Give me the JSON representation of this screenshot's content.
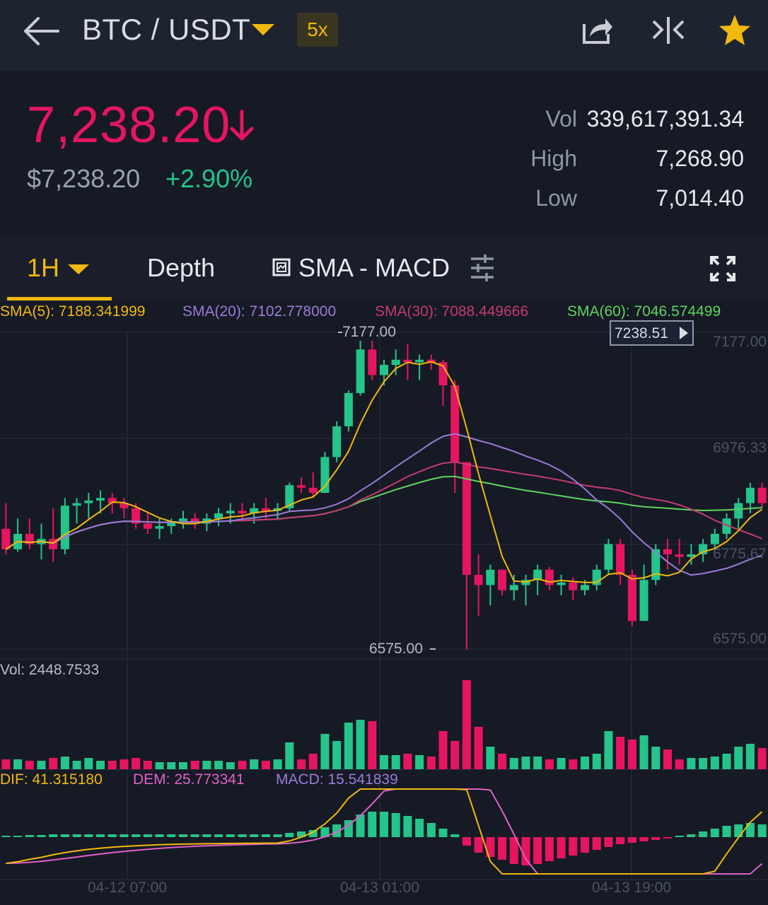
{
  "header": {
    "pair": "BTC / USDT",
    "leverage": "5x"
  },
  "icons": {
    "back": "back-arrow-icon",
    "share": "share-icon",
    "compare": "compare-icon",
    "favorite": "star-icon"
  },
  "ticker": {
    "last_price": "7,238.20",
    "usd_price": "$7,238.20",
    "change": "+2.90%",
    "vol_label": "Vol",
    "vol_value": "339,617,391.34",
    "high_label": "High",
    "high_value": "7,268.90",
    "low_label": "Low",
    "low_value": "7,014.40"
  },
  "tabs": {
    "interval": "1H",
    "depth": "Depth",
    "indicators": "SMA - MACD"
  },
  "colors": {
    "up": "#25c48a",
    "down": "#e6155f",
    "accent": "#f0b90b",
    "sma5": "#f0b90b",
    "sma20": "#9b7ad8",
    "sma30": "#c43a70",
    "sma60": "#5fd35f",
    "dif": "#f0b90b",
    "dem": "#e060c8"
  },
  "chart_data": {
    "type": "candlestick",
    "sma_legend": [
      "SMA(5): 7188.341999",
      "SMA(20): 7102.778000",
      "SMA(30): 7088.449666",
      "SMA(60): 7046.574499"
    ],
    "y_ticks": [
      "7177.00",
      "6976.33",
      "6775.67",
      "6575.00"
    ],
    "ylim": [
      6575,
      7177
    ],
    "max_label": "7177.00",
    "min_label": "6575.00",
    "current_price_tag": "7238.51",
    "x_ticks": [
      "04-12 07:00",
      "04-13 01:00",
      "04-13 19:00"
    ],
    "volume_label": "Vol: 2448.7533",
    "macd_legend": [
      "DIF: 41.315180",
      "DEM: 25.773341",
      "MACD: 15.541839"
    ],
    "candles": [
      {
        "o": 6810,
        "h": 6860,
        "l": 6760,
        "c": 6770
      },
      {
        "o": 6770,
        "h": 6830,
        "l": 6765,
        "c": 6800
      },
      {
        "o": 6800,
        "h": 6830,
        "l": 6770,
        "c": 6780
      },
      {
        "o": 6780,
        "h": 6820,
        "l": 6750,
        "c": 6790
      },
      {
        "o": 6790,
        "h": 6850,
        "l": 6745,
        "c": 6770
      },
      {
        "o": 6770,
        "h": 6870,
        "l": 6760,
        "c": 6855
      },
      {
        "o": 6855,
        "h": 6870,
        "l": 6820,
        "c": 6860
      },
      {
        "o": 6860,
        "h": 6880,
        "l": 6830,
        "c": 6865
      },
      {
        "o": 6865,
        "h": 6885,
        "l": 6840,
        "c": 6870
      },
      {
        "o": 6870,
        "h": 6880,
        "l": 6840,
        "c": 6860
      },
      {
        "o": 6860,
        "h": 6870,
        "l": 6830,
        "c": 6850
      },
      {
        "o": 6850,
        "h": 6860,
        "l": 6810,
        "c": 6820
      },
      {
        "o": 6820,
        "h": 6840,
        "l": 6800,
        "c": 6810
      },
      {
        "o": 6810,
        "h": 6830,
        "l": 6790,
        "c": 6815
      },
      {
        "o": 6815,
        "h": 6830,
        "l": 6800,
        "c": 6825
      },
      {
        "o": 6825,
        "h": 6845,
        "l": 6810,
        "c": 6830
      },
      {
        "o": 6830,
        "h": 6840,
        "l": 6810,
        "c": 6820
      },
      {
        "o": 6820,
        "h": 6840,
        "l": 6805,
        "c": 6830
      },
      {
        "o": 6830,
        "h": 6850,
        "l": 6815,
        "c": 6840
      },
      {
        "o": 6840,
        "h": 6860,
        "l": 6820,
        "c": 6845
      },
      {
        "o": 6845,
        "h": 6860,
        "l": 6825,
        "c": 6840
      },
      {
        "o": 6840,
        "h": 6860,
        "l": 6820,
        "c": 6850
      },
      {
        "o": 6850,
        "h": 6870,
        "l": 6830,
        "c": 6845
      },
      {
        "o": 6845,
        "h": 6860,
        "l": 6830,
        "c": 6850
      },
      {
        "o": 6850,
        "h": 6900,
        "l": 6845,
        "c": 6895
      },
      {
        "o": 6895,
        "h": 6910,
        "l": 6880,
        "c": 6890
      },
      {
        "o": 6890,
        "h": 6920,
        "l": 6870,
        "c": 6880
      },
      {
        "o": 6880,
        "h": 6960,
        "l": 6880,
        "c": 6950
      },
      {
        "o": 6950,
        "h": 7020,
        "l": 6940,
        "c": 7010
      },
      {
        "o": 7010,
        "h": 7080,
        "l": 7000,
        "c": 7075
      },
      {
        "o": 7075,
        "h": 7177,
        "l": 7070,
        "c": 7160
      },
      {
        "o": 7160,
        "h": 7177,
        "l": 7100,
        "c": 7110
      },
      {
        "o": 7110,
        "h": 7140,
        "l": 7090,
        "c": 7130
      },
      {
        "o": 7130,
        "h": 7160,
        "l": 7110,
        "c": 7140
      },
      {
        "o": 7140,
        "h": 7170,
        "l": 7100,
        "c": 7135
      },
      {
        "o": 7135,
        "h": 7150,
        "l": 7100,
        "c": 7140
      },
      {
        "o": 7140,
        "h": 7150,
        "l": 7120,
        "c": 7135
      },
      {
        "o": 7135,
        "h": 7140,
        "l": 7050,
        "c": 7090
      },
      {
        "o": 7090,
        "h": 7100,
        "l": 6880,
        "c": 6940
      },
      {
        "o": 6940,
        "h": 6940,
        "l": 6575,
        "c": 6720
      },
      {
        "o": 6720,
        "h": 6760,
        "l": 6640,
        "c": 6700
      },
      {
        "o": 6700,
        "h": 6740,
        "l": 6660,
        "c": 6730
      },
      {
        "o": 6730,
        "h": 6730,
        "l": 6680,
        "c": 6690
      },
      {
        "o": 6690,
        "h": 6720,
        "l": 6670,
        "c": 6700
      },
      {
        "o": 6700,
        "h": 6720,
        "l": 6660,
        "c": 6710
      },
      {
        "o": 6710,
        "h": 6740,
        "l": 6680,
        "c": 6730
      },
      {
        "o": 6730,
        "h": 6735,
        "l": 6690,
        "c": 6700
      },
      {
        "o": 6700,
        "h": 6720,
        "l": 6680,
        "c": 6705
      },
      {
        "o": 6705,
        "h": 6715,
        "l": 6670,
        "c": 6690
      },
      {
        "o": 6690,
        "h": 6710,
        "l": 6680,
        "c": 6700
      },
      {
        "o": 6700,
        "h": 6740,
        "l": 6690,
        "c": 6730
      },
      {
        "o": 6730,
        "h": 6790,
        "l": 6720,
        "c": 6780
      },
      {
        "o": 6780,
        "h": 6790,
        "l": 6700,
        "c": 6720
      },
      {
        "o": 6720,
        "h": 6730,
        "l": 6620,
        "c": 6630
      },
      {
        "o": 6630,
        "h": 6740,
        "l": 6630,
        "c": 6710
      },
      {
        "o": 6710,
        "h": 6780,
        "l": 6700,
        "c": 6770
      },
      {
        "o": 6770,
        "h": 6790,
        "l": 6730,
        "c": 6760
      },
      {
        "o": 6760,
        "h": 6790,
        "l": 6740,
        "c": 6755
      },
      {
        "o": 6755,
        "h": 6780,
        "l": 6740,
        "c": 6760
      },
      {
        "o": 6760,
        "h": 6790,
        "l": 6745,
        "c": 6780
      },
      {
        "o": 6780,
        "h": 6810,
        "l": 6770,
        "c": 6800
      },
      {
        "o": 6800,
        "h": 6840,
        "l": 6790,
        "c": 6830
      },
      {
        "o": 6830,
        "h": 6870,
        "l": 6810,
        "c": 6860
      },
      {
        "o": 6860,
        "h": 6900,
        "l": 6840,
        "c": 6890
      },
      {
        "o": 6890,
        "h": 6900,
        "l": 6850,
        "c": 6860
      }
    ],
    "volumes": [
      14,
      14,
      12,
      12,
      16,
      18,
      12,
      16,
      12,
      12,
      14,
      16,
      12,
      10,
      10,
      10,
      12,
      12,
      12,
      10,
      12,
      14,
      12,
      14,
      38,
      14,
      22,
      50,
      40,
      66,
      70,
      68,
      20,
      20,
      22,
      20,
      18,
      54,
      40,
      126,
      60,
      32,
      22,
      16,
      18,
      18,
      14,
      16,
      14,
      18,
      22,
      54,
      46,
      42,
      48,
      32,
      28,
      14,
      16,
      16,
      18,
      22,
      32,
      36,
      30
    ],
    "macd_hist": [
      2,
      2,
      3,
      3,
      4,
      4,
      4,
      4,
      4,
      4,
      4,
      4,
      4,
      4,
      4,
      4,
      4,
      4,
      4,
      4,
      4,
      4,
      4,
      4,
      6,
      8,
      10,
      14,
      18,
      24,
      32,
      36,
      36,
      34,
      30,
      26,
      20,
      12,
      4,
      -12,
      -22,
      -28,
      -32,
      -38,
      -40,
      -38,
      -34,
      -30,
      -26,
      -22,
      -18,
      -14,
      -10,
      -8,
      -6,
      -4,
      -2,
      2,
      4,
      8,
      12,
      16,
      18,
      20,
      18
    ]
  }
}
